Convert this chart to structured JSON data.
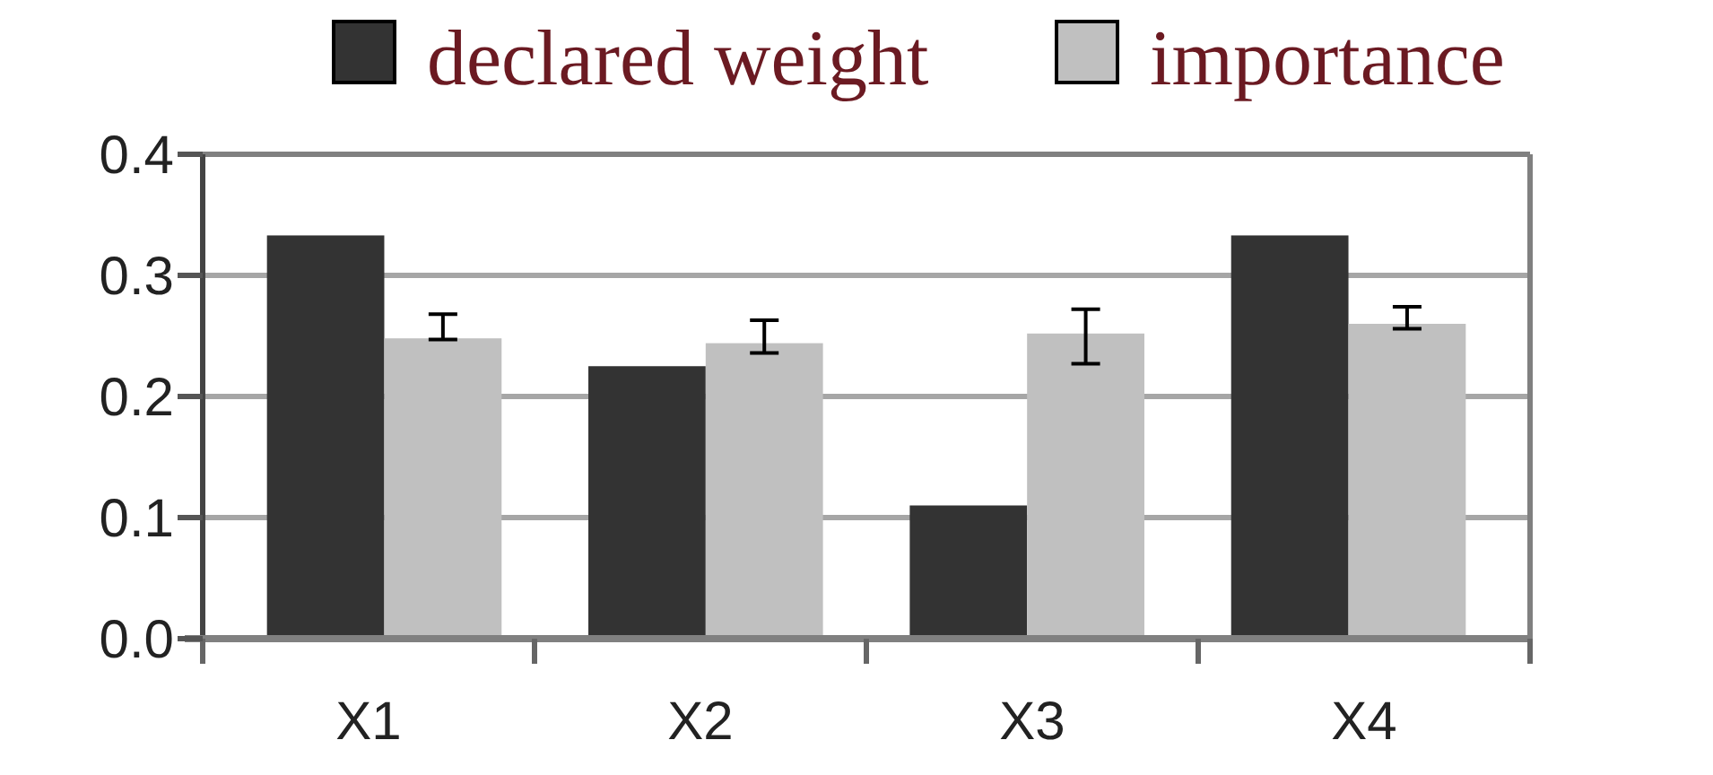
{
  "chart_data": {
    "type": "bar",
    "categories": [
      "X1",
      "X2",
      "X3",
      "X4"
    ],
    "series": [
      {
        "name": "declared weight",
        "color": "#333333",
        "values": [
          0.333,
          0.225,
          0.11,
          0.333
        ]
      },
      {
        "name": "importance",
        "color": "#c0c0c0",
        "values": [
          0.248,
          0.244,
          0.252,
          0.26
        ],
        "errors": [
          [
            0.247,
            0.268
          ],
          [
            0.236,
            0.263
          ],
          [
            0.227,
            0.272
          ],
          [
            0.256,
            0.274
          ]
        ]
      }
    ],
    "ylim": [
      0,
      0.4
    ],
    "yticks": [
      {
        "value": 0,
        "label": "0.0"
      },
      0.1,
      0.2,
      0.3,
      0.4
    ],
    "grid": "y",
    "legend": "top right"
  }
}
